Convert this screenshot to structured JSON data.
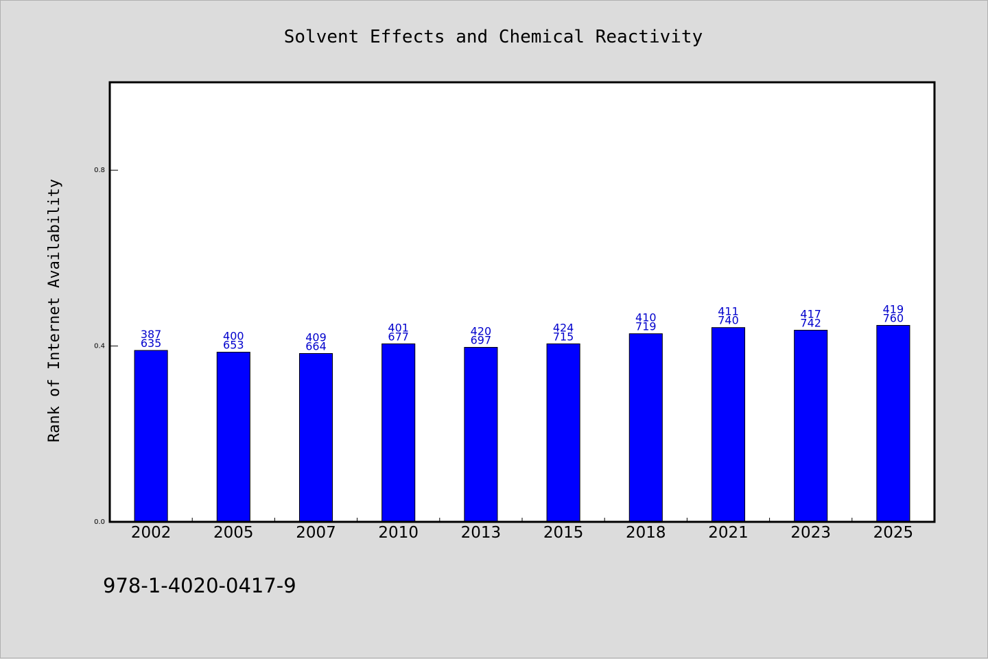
{
  "chart_data": {
    "type": "bar",
    "title": "Solvent Effects and Chemical Reactivity",
    "xlabel": "",
    "ylabel": "Rank of Internet Availability",
    "ylim": [
      0.0,
      1.0
    ],
    "yticks": [
      0.0,
      0.4,
      0.8
    ],
    "ytick_labels": [
      "0.0",
      "0.4",
      "0.8"
    ],
    "categories": [
      "2002",
      "2005",
      "2007",
      "2010",
      "2013",
      "2015",
      "2018",
      "2021",
      "2023",
      "2025"
    ],
    "values": [
      0.39,
      0.386,
      0.383,
      0.405,
      0.397,
      0.405,
      0.428,
      0.442,
      0.436,
      0.447
    ],
    "annotations_top": [
      "387",
      "400",
      "409",
      "401",
      "420",
      "424",
      "410",
      "411",
      "417",
      "419"
    ],
    "annotations_bottom": [
      "635",
      "653",
      "664",
      "677",
      "697",
      "715",
      "719",
      "740",
      "742",
      "760"
    ],
    "bar_color": "#0000ff",
    "label_color": "#0000cc",
    "grid": false,
    "legend": "none"
  },
  "footer": {
    "isbn": "978-1-4020-0417-9"
  }
}
